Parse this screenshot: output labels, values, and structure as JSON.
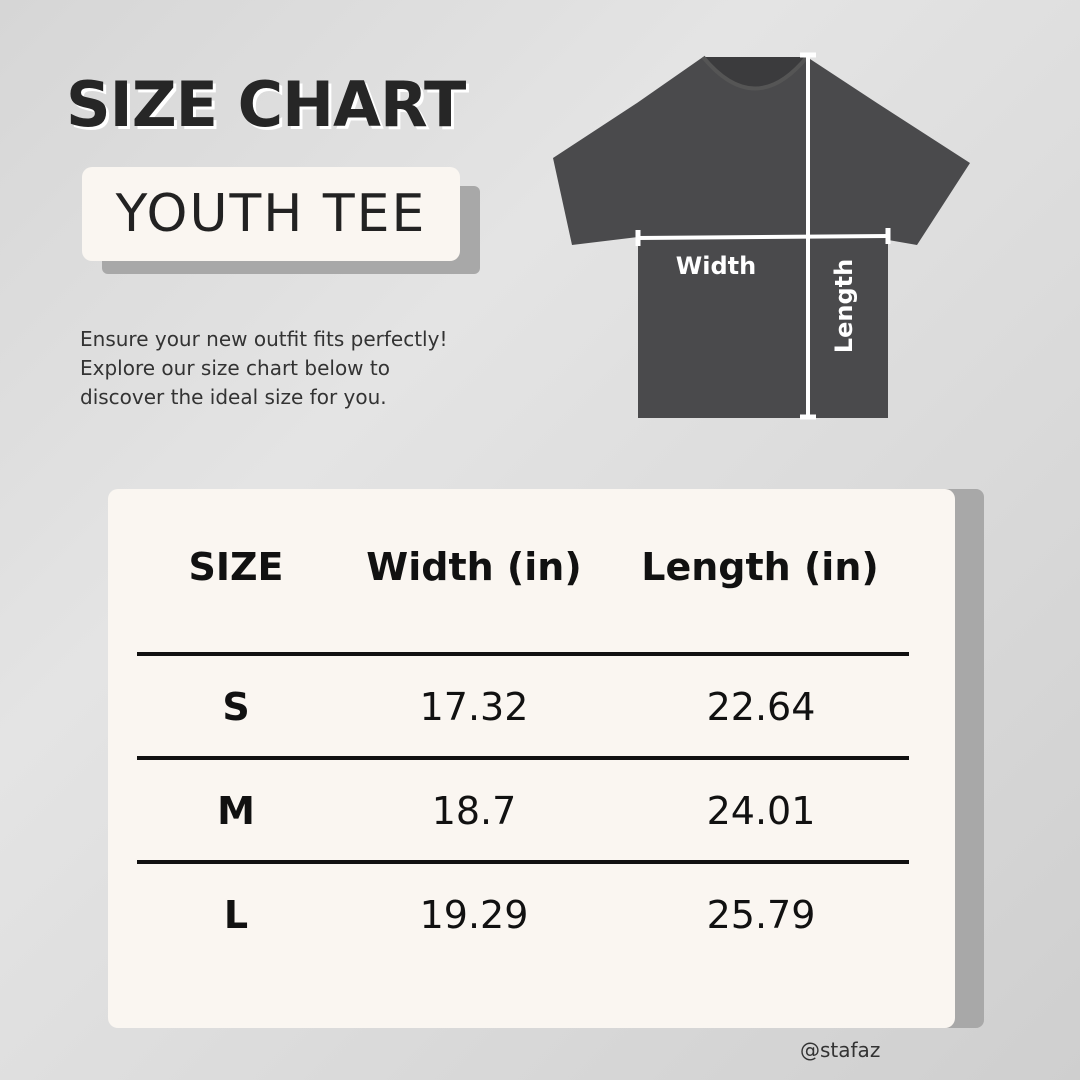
{
  "title": "SIZE CHART",
  "subtitle": "YOUTH TEE",
  "description": [
    "Ensure your new outfit fits perfectly!",
    "Explore our size chart below to",
    "discover the ideal size for you."
  ],
  "diagram": {
    "width_label": "Width",
    "length_label": "Length",
    "shirt_color": "#4a4a4c"
  },
  "table": {
    "headers": [
      "SIZE",
      "Width (in)",
      "Length (in)"
    ],
    "rows": [
      {
        "size": "S",
        "width": "17.32",
        "length": "22.64"
      },
      {
        "size": "M",
        "width": "18.7",
        "length": "24.01"
      },
      {
        "size": "L",
        "width": "19.29",
        "length": "25.79"
      }
    ]
  },
  "handle": "@stafaz"
}
